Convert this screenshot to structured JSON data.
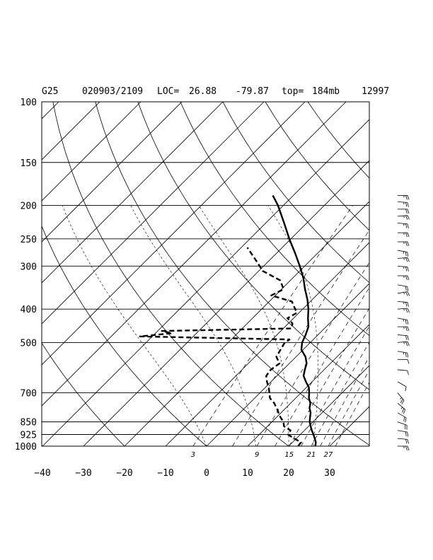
{
  "header": {
    "station": "G25",
    "datetime": "020903/2109",
    "loc_label": "LOC=",
    "lat": "26.88",
    "lon": "-79.87",
    "top_label": "top=",
    "top_value": "184mb",
    "id": "12997"
  },
  "chart_data": {
    "type": "line",
    "diagram": "skew-t log-p sounding",
    "pressure_axis": {
      "ticks": [
        100,
        150,
        200,
        250,
        300,
        400,
        500,
        700,
        850,
        925,
        1000
      ],
      "labels": [
        "100",
        "150",
        "200",
        "250",
        "300",
        "400",
        "500",
        "700",
        "850",
        "925",
        "1000"
      ],
      "range": [
        1000,
        100
      ],
      "scale": "log"
    },
    "temperature_axis": {
      "ticks": [
        -40,
        -30,
        -20,
        -10,
        0,
        10,
        20,
        30
      ],
      "labels": [
        "−40",
        "−30",
        "−20",
        "−10",
        "0",
        "10",
        "20",
        "30"
      ]
    },
    "mixing_ratio_labels": [
      "3",
      "9",
      "15",
      "21",
      "27"
    ],
    "mixing_ratio_values": [
      3,
      9,
      15,
      21,
      27
    ],
    "series": [
      {
        "style": "solid",
        "points": [
          {
            "p": 1000,
            "t": 26.5
          },
          {
            "p": 975,
            "t": 25.7
          },
          {
            "p": 950,
            "t": 24.5
          },
          {
            "p": 925,
            "t": 23.2
          },
          {
            "p": 900,
            "t": 21.8
          },
          {
            "p": 875,
            "t": 20.5
          },
          {
            "p": 850,
            "t": 19.2
          },
          {
            "p": 825,
            "t": 18.2
          },
          {
            "p": 800,
            "t": 17.2
          },
          {
            "p": 775,
            "t": 15.8
          },
          {
            "p": 750,
            "t": 14.8
          },
          {
            "p": 725,
            "t": 13.2
          },
          {
            "p": 700,
            "t": 12.0
          },
          {
            "p": 675,
            "t": 10.6
          },
          {
            "p": 650,
            "t": 8.5
          },
          {
            "p": 625,
            "t": 6.5
          },
          {
            "p": 600,
            "t": 5.3
          },
          {
            "p": 575,
            "t": 4.2
          },
          {
            "p": 550,
            "t": 2.3
          },
          {
            "p": 525,
            "t": -0.4
          },
          {
            "p": 500,
            "t": -2.0
          },
          {
            "p": 475,
            "t": -3.0
          },
          {
            "p": 450,
            "t": -4.3
          },
          {
            "p": 425,
            "t": -6.5
          },
          {
            "p": 400,
            "t": -8.6
          },
          {
            "p": 375,
            "t": -11.2
          },
          {
            "p": 350,
            "t": -14.3
          },
          {
            "p": 325,
            "t": -17.4
          },
          {
            "p": 300,
            "t": -21.2
          },
          {
            "p": 275,
            "t": -25.5
          },
          {
            "p": 250,
            "t": -30.4
          },
          {
            "p": 225,
            "t": -35.5
          },
          {
            "p": 200,
            "t": -41.3
          },
          {
            "p": 187,
            "t": -45.0
          }
        ]
      },
      {
        "style": "dashed",
        "points": [
          {
            "p": 1000,
            "t": 22.3
          },
          {
            "p": 975,
            "t": 22.1
          },
          {
            "p": 950,
            "t": 19.5
          },
          {
            "p": 925,
            "t": 17.0
          },
          {
            "p": 900,
            "t": 16.6
          },
          {
            "p": 875,
            "t": 14.0
          },
          {
            "p": 850,
            "t": 12.8
          },
          {
            "p": 825,
            "t": 11.0
          },
          {
            "p": 800,
            "t": 9.4
          },
          {
            "p": 775,
            "t": 7.8
          },
          {
            "p": 750,
            "t": 6.0
          },
          {
            "p": 725,
            "t": 3.7
          },
          {
            "p": 700,
            "t": 2.3
          },
          {
            "p": 675,
            "t": 0.8
          },
          {
            "p": 650,
            "t": -1.0
          },
          {
            "p": 625,
            "t": -2.6
          },
          {
            "p": 600,
            "t": -3.0
          },
          {
            "p": 575,
            "t": -2.4
          },
          {
            "p": 550,
            "t": -4.8
          },
          {
            "p": 525,
            "t": -5.5
          },
          {
            "p": 500,
            "t": -6.2
          },
          {
            "p": 490,
            "t": -5.8
          },
          {
            "p": 480,
            "t": -43.0
          },
          {
            "p": 470,
            "t": -36.0
          },
          {
            "p": 463,
            "t": -39.0
          },
          {
            "p": 455,
            "t": -8.0
          },
          {
            "p": 440,
            "t": -9.0
          },
          {
            "p": 425,
            "t": -11.5
          },
          {
            "p": 410,
            "t": -10.5
          },
          {
            "p": 395,
            "t": -12.5
          },
          {
            "p": 380,
            "t": -14.5
          },
          {
            "p": 365,
            "t": -21.0
          },
          {
            "p": 350,
            "t": -19.5
          },
          {
            "p": 330,
            "t": -22.5
          },
          {
            "p": 310,
            "t": -29.0
          },
          {
            "p": 290,
            "t": -33.0
          },
          {
            "p": 265,
            "t": -38.5
          }
        ]
      }
    ]
  },
  "wind_profile": {
    "barbs": [
      {
        "p": 187,
        "dir": 90,
        "spd": 15
      },
      {
        "p": 195,
        "dir": 95,
        "spd": 15
      },
      {
        "p": 205,
        "dir": 90,
        "spd": 20
      },
      {
        "p": 215,
        "dir": 85,
        "spd": 15
      },
      {
        "p": 225,
        "dir": 95,
        "spd": 15
      },
      {
        "p": 240,
        "dir": 90,
        "spd": 15
      },
      {
        "p": 255,
        "dir": 90,
        "spd": 15
      },
      {
        "p": 270,
        "dir": 100,
        "spd": 15
      },
      {
        "p": 285,
        "dir": 85,
        "spd": 15
      },
      {
        "p": 300,
        "dir": 95,
        "spd": 15
      },
      {
        "p": 320,
        "dir": 90,
        "spd": 15
      },
      {
        "p": 340,
        "dir": 100,
        "spd": 20
      },
      {
        "p": 360,
        "dir": 80,
        "spd": 15
      },
      {
        "p": 380,
        "dir": 95,
        "spd": 15
      },
      {
        "p": 400,
        "dir": 85,
        "spd": 15
      },
      {
        "p": 425,
        "dir": 100,
        "spd": 15
      },
      {
        "p": 450,
        "dir": 90,
        "spd": 15
      },
      {
        "p": 475,
        "dir": 95,
        "spd": 20
      },
      {
        "p": 500,
        "dir": 85,
        "spd": 15
      },
      {
        "p": 530,
        "dir": 100,
        "spd": 15
      },
      {
        "p": 560,
        "dir": 90,
        "spd": 10
      },
      {
        "p": 600,
        "dir": 95,
        "spd": 10
      },
      {
        "p": 650,
        "dir": 120,
        "spd": 10
      },
      {
        "p": 700,
        "dir": 140,
        "spd": 15
      },
      {
        "p": 750,
        "dir": 130,
        "spd": 15
      },
      {
        "p": 800,
        "dir": 120,
        "spd": 20
      },
      {
        "p": 850,
        "dir": 110,
        "spd": 20
      },
      {
        "p": 900,
        "dir": 100,
        "spd": 20
      },
      {
        "p": 950,
        "dir": 95,
        "spd": 20
      },
      {
        "p": 1000,
        "dir": 90,
        "spd": 15
      }
    ]
  }
}
